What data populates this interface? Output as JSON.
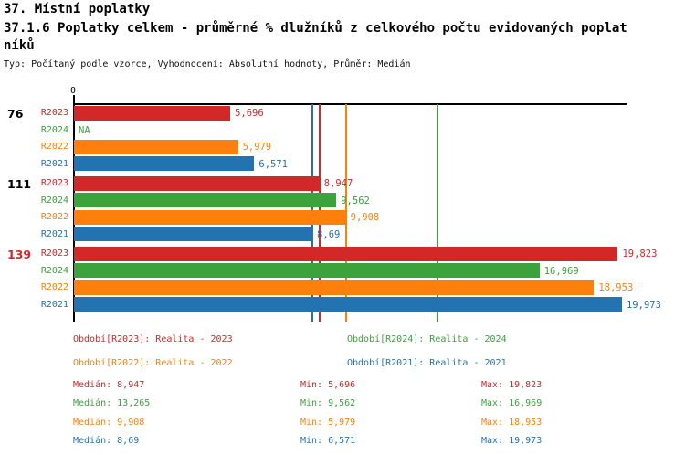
{
  "header": {
    "title_line1": "37. Místní poplatky",
    "title_line2": "37.1.6 Poplatky celkem - průměrné % dlužníků z celkového počtu evidovaných poplat",
    "title_line3": "níků",
    "subtitle": "Typ: Počítaný podle vzorce, Vyhodnocení: Absolutní hodnoty, Průměr: Medián"
  },
  "colors": {
    "R2023": "#d22828",
    "R2024": "#3ca23c",
    "R2022": "#fd800d",
    "R2021": "#2273b0",
    "axis": "#000000",
    "group_label_default": "#000000",
    "group_label_highlight": "#d22828"
  },
  "chart_data": {
    "type": "bar",
    "orientation": "horizontal",
    "title": "37.1.6 Poplatky celkem - průměrné % dlužníků z celkového počtu evidovaných poplatníků",
    "x_axis": {
      "origin_label": "0",
      "min": 0,
      "max": 20.2,
      "grid": false
    },
    "series_order": [
      "R2023",
      "R2024",
      "R2022",
      "R2021"
    ],
    "groups": [
      {
        "label": "76",
        "label_color": "#000000",
        "bars": [
          {
            "series": "R2023",
            "value": 5.696,
            "display": "5,696"
          },
          {
            "series": "R2024",
            "value": null,
            "display": "NA"
          },
          {
            "series": "R2022",
            "value": 5.979,
            "display": "5,979"
          },
          {
            "series": "R2021",
            "value": 6.571,
            "display": "6,571"
          }
        ]
      },
      {
        "label": "111",
        "label_color": "#000000",
        "bars": [
          {
            "series": "R2023",
            "value": 8.947,
            "display": "8,947"
          },
          {
            "series": "R2024",
            "value": 9.562,
            "display": "9,562"
          },
          {
            "series": "R2022",
            "value": 9.908,
            "display": "9,908"
          },
          {
            "series": "R2021",
            "value": 8.69,
            "display": "8,69"
          }
        ]
      },
      {
        "label": "139",
        "label_color": "#d22828",
        "bars": [
          {
            "series": "R2023",
            "value": 19.823,
            "display": "19,823"
          },
          {
            "series": "R2024",
            "value": 16.969,
            "display": "16,969"
          },
          {
            "series": "R2022",
            "value": 18.953,
            "display": "18,953"
          },
          {
            "series": "R2021",
            "value": 19.973,
            "display": "19,973"
          }
        ]
      }
    ],
    "median_lines": [
      {
        "series": "R2023",
        "value": 8.947
      },
      {
        "series": "R2024",
        "value": 13.265
      },
      {
        "series": "R2022",
        "value": 9.908
      },
      {
        "series": "R2021",
        "value": 8.69
      }
    ],
    "legend_position": "bottom"
  },
  "legend": {
    "items": [
      {
        "series": "R2023",
        "text": "Období[R2023]: Realita - 2023"
      },
      {
        "series": "R2024",
        "text": "Období[R2024]: Realita - 2024"
      },
      {
        "series": "R2022",
        "text": "Období[R2022]: Realita - 2022"
      },
      {
        "series": "R2021",
        "text": "Období[R2021]: Realita - 2021"
      }
    ]
  },
  "stats": [
    {
      "series": "R2023",
      "median": "Medián: 8,947",
      "min": "Min: 5,696",
      "max": "Max: 19,823"
    },
    {
      "series": "R2024",
      "median": "Medián: 13,265",
      "min": "Min: 9,562",
      "max": "Max: 16,969"
    },
    {
      "series": "R2022",
      "median": "Medián: 9,908",
      "min": "Min: 5,979",
      "max": "Max: 18,953"
    },
    {
      "series": "R2021",
      "median": "Medián: 8,69",
      "min": "Min: 6,571",
      "max": "Max: 19,973"
    }
  ]
}
